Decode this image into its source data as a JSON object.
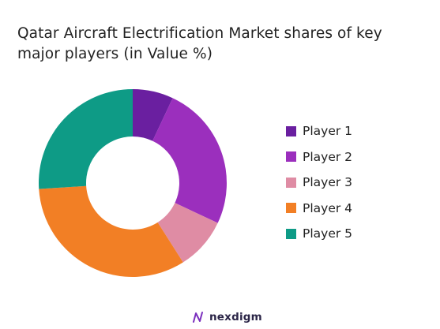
{
  "chart_data": {
    "type": "pie",
    "variant": "donut",
    "title": "Qatar Aircraft Electrification Market shares of key major players (in Value %)",
    "categories": [
      "Player 1",
      "Player 2",
      "Player 3",
      "Player 4",
      "Player 5"
    ],
    "values": [
      7,
      25,
      9,
      33,
      26
    ],
    "colors": [
      "#6a1fa0",
      "#9b2fbd",
      "#df8ca4",
      "#f27f25",
      "#0e9b86"
    ],
    "legend": "right",
    "grid": false
  },
  "footer": {
    "logo_text": "nexdigm"
  }
}
